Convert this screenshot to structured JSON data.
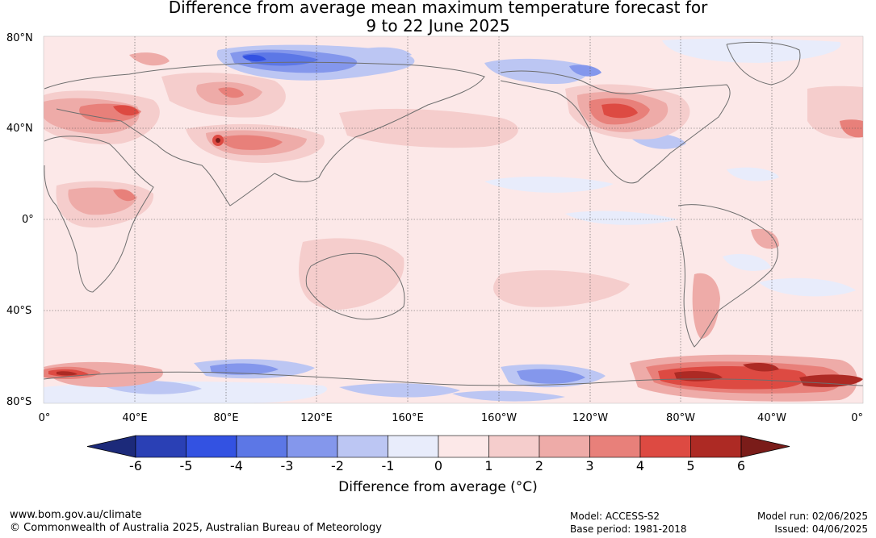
{
  "title": {
    "line1": "Difference from average mean maximum temperature forecast for",
    "line2": "9 to 22 June 2025"
  },
  "lat_labels": [
    "80°N",
    "40°N",
    "0°",
    "40°S",
    "80°S"
  ],
  "lon_labels": [
    "0°",
    "40°E",
    "80°E",
    "120°E",
    "160°E",
    "160°W",
    "120°W",
    "80°W",
    "40°W",
    "0°"
  ],
  "colorbar": {
    "ticks": [
      "-6",
      "-5",
      "-4",
      "-3",
      "-2",
      "-1",
      "0",
      "1",
      "2",
      "3",
      "4",
      "5",
      "6"
    ],
    "colors": [
      "#1c2a7a",
      "#2a40b5",
      "#3352e2",
      "#5c77e6",
      "#8497ec",
      "#bcc6f3",
      "#e8ecfb",
      "#fce8e8",
      "#f5cdcc",
      "#eeaba8",
      "#e8807a",
      "#dd4a42",
      "#ad2a24",
      "#7a1c19"
    ],
    "label": "Difference from average (°C)"
  },
  "footer": {
    "url": "www.bom.gov.au/climate",
    "copyright": "© Commonwealth of Australia 2025, Australian Bureau of Meteorology",
    "model": "Model: ACCESS-S2",
    "base_period": "Base period: 1981-2018",
    "model_run": "Model run: 02/06/2025",
    "issued": "Issued: 04/06/2025"
  },
  "map_colors": {
    "background": "#fce8e8",
    "land_outline": "#6e6e6e",
    "grid": "#555555"
  }
}
